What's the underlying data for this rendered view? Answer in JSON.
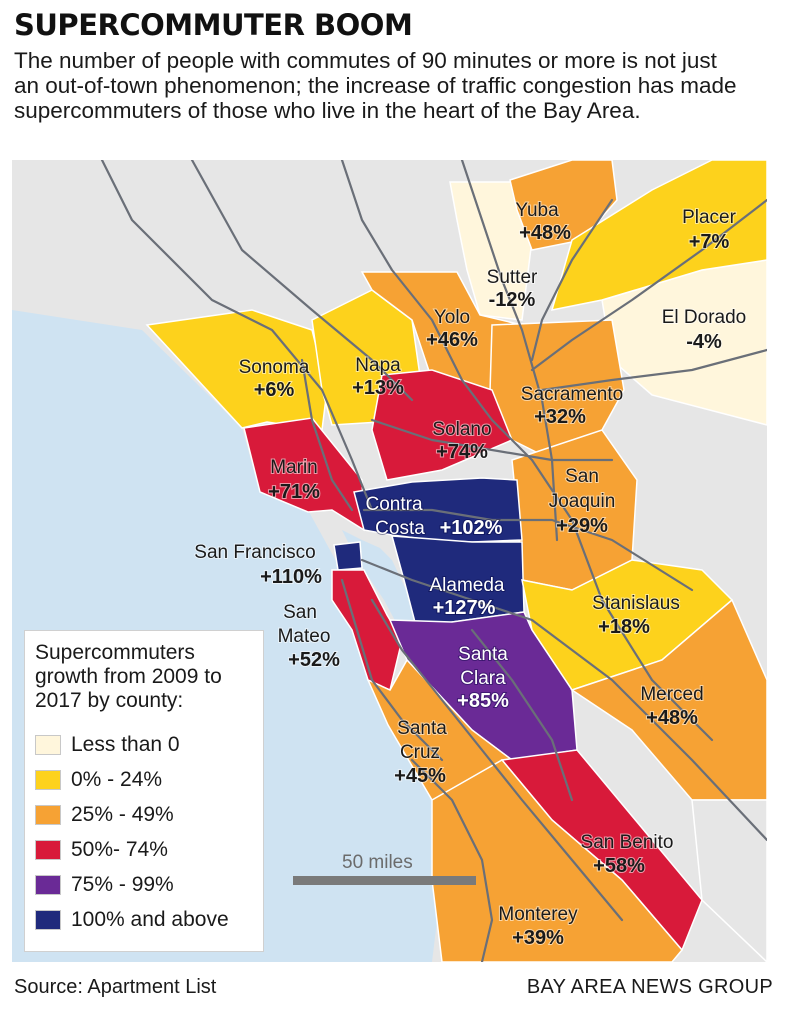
{
  "title": "SUPERCOMMUTER BOOM",
  "subtitle": "The number of people with commutes of 90 minutes or more is not just an out-of-town phenomenon; the increase of traffic congestion has made supercommuters of those who live in the heart of the Bay Area.",
  "colors": {
    "water": "#cfe3f2",
    "land": "#e6e6e6",
    "roads": "#6a6f78",
    "less_than_0": "#fff6dc",
    "0_24": "#fdd21c",
    "25_49": "#f6a234",
    "50_74": "#d81a3a",
    "75_99": "#6a2a96",
    "100_plus": "#1f2a7c"
  },
  "counties": {
    "yuba": {
      "name": "Yuba",
      "value": "+48%"
    },
    "placer": {
      "name": "Placer",
      "value": "+7%"
    },
    "sutter": {
      "name": "Sutter",
      "value": "-12%"
    },
    "yolo": {
      "name": "Yolo",
      "value": "+46%"
    },
    "el_dorado": {
      "name": "El Dorado",
      "value": "-4%"
    },
    "sonoma": {
      "name": "Sonoma",
      "value": "+6%"
    },
    "napa": {
      "name": "Napa",
      "value": "+13%"
    },
    "sacramento": {
      "name": "Sacramento",
      "value": "+32%"
    },
    "solano": {
      "name": "Solano",
      "value": "+74%"
    },
    "marin": {
      "name": "Marin",
      "value": "+71%"
    },
    "san_joaquin": {
      "name_line1": "San",
      "name_line2": "Joaquin",
      "value": "+29%"
    },
    "contra_costa": {
      "name_line1": "Contra",
      "name_line2": "Costa",
      "value": "+102%"
    },
    "san_francisco": {
      "name": "San Francisco",
      "value": "+110%"
    },
    "alameda": {
      "name": "Alameda",
      "value": "+127%"
    },
    "stanislaus": {
      "name": "Stanislaus",
      "value": "+18%"
    },
    "san_mateo": {
      "name_line1": "San",
      "name_line2": "Mateo",
      "value": "+52%"
    },
    "santa_clara": {
      "name_line1": "Santa",
      "name_line2": "Clara",
      "value": "+85%"
    },
    "merced": {
      "name": "Merced",
      "value": "+48%"
    },
    "santa_cruz": {
      "name_line1": "Santa",
      "name_line2": "Cruz",
      "value": "+45%"
    },
    "san_benito": {
      "name": "San Benito",
      "value": "+58%"
    },
    "monterey": {
      "name": "Monterey",
      "value": "+39%"
    }
  },
  "legend": {
    "title": "Supercommuters growth from 2009 to 2017 by county:",
    "items": [
      {
        "label": "Less than 0",
        "color": "#fff6dc"
      },
      {
        "label": "0% - 24%",
        "color": "#fdd21c"
      },
      {
        "label": "25% - 49%",
        "color": "#f6a234"
      },
      {
        "label": "50%- 74%",
        "color": "#d81a3a"
      },
      {
        "label": "75% - 99%",
        "color": "#6a2a96"
      },
      {
        "label": "100% and above",
        "color": "#1f2a7c"
      }
    ]
  },
  "scale": {
    "label": "50 miles"
  },
  "source": "Source: Apartment List",
  "credit": "BAY AREA NEWS GROUP"
}
